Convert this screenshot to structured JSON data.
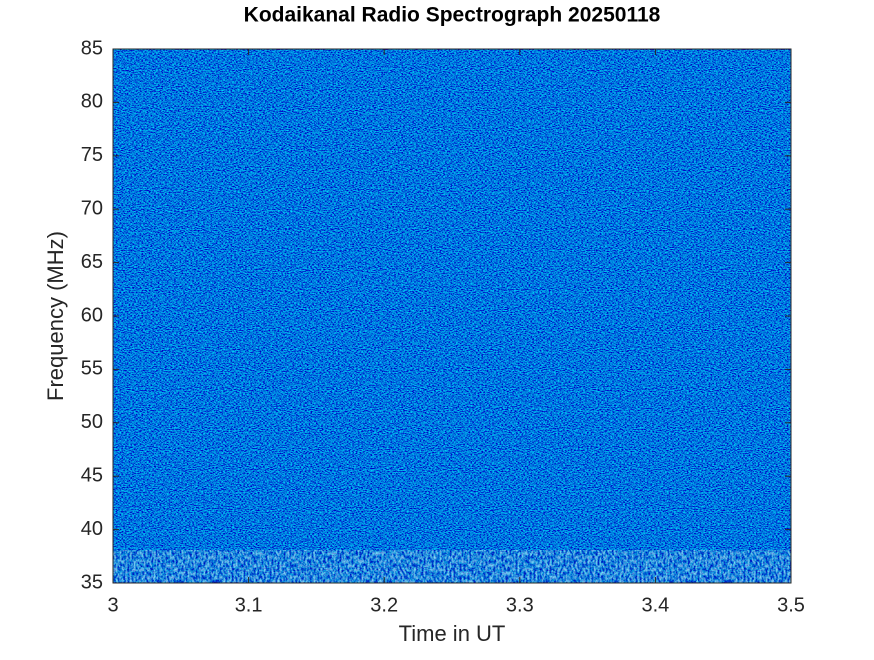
{
  "chart_data": {
    "type": "spectrogram",
    "title": "Kodaikanal Radio Spectrograph  20250118",
    "xlabel": "Time in UT",
    "ylabel": "Frequency (MHz)",
    "xlim": [
      3,
      3.5
    ],
    "xticks": [
      3,
      3.1,
      3.2,
      3.3,
      3.4,
      3.5
    ],
    "ylim": [
      35,
      85
    ],
    "yticks": [
      35,
      40,
      45,
      50,
      55,
      60,
      65,
      70,
      75,
      80,
      85
    ]
  }
}
